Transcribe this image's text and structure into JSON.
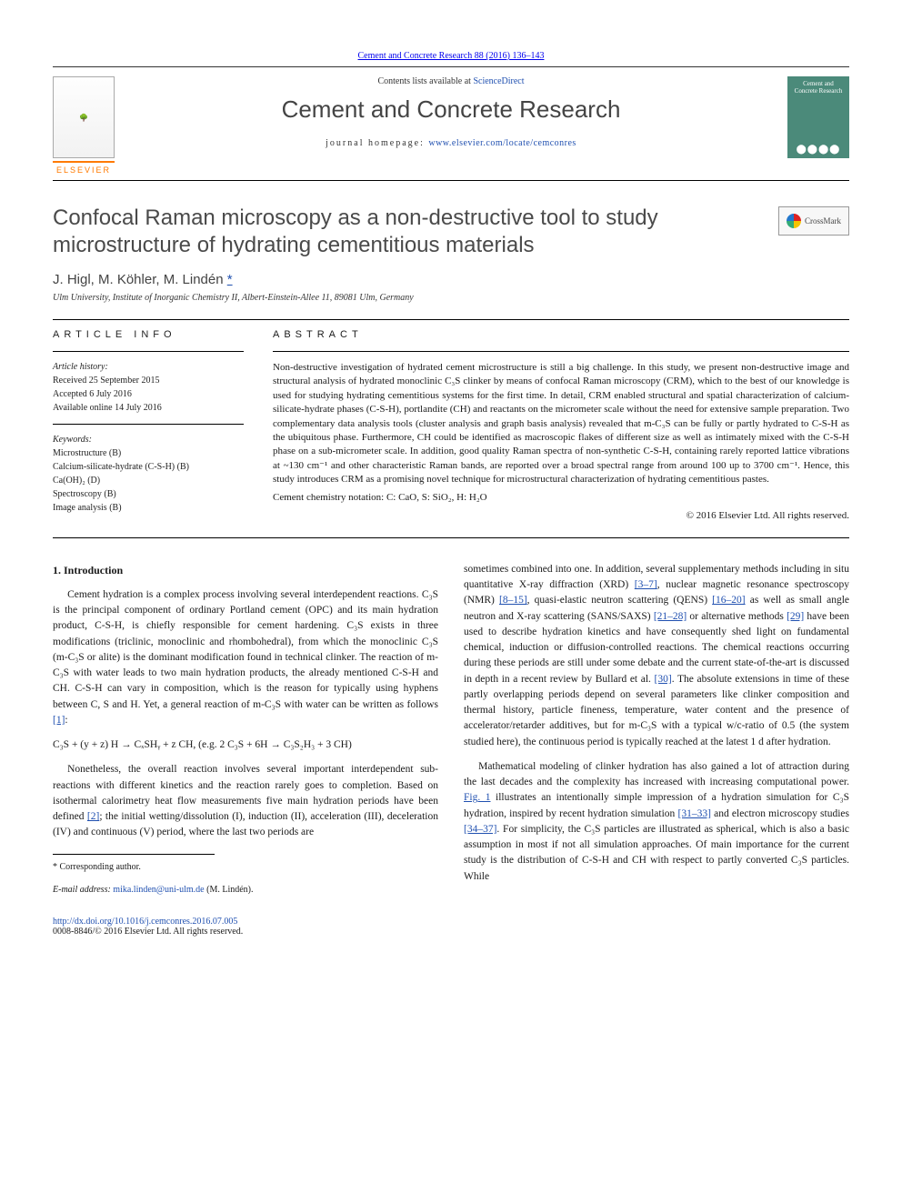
{
  "link_colors": {
    "primary": "#2050b0"
  },
  "journal_ref": "Cement and Concrete Research 88 (2016) 136–143",
  "header": {
    "contents_prefix": "Contents lists available at ",
    "contents_link": "ScienceDirect",
    "journal_name": "Cement and Concrete Research",
    "homepage_prefix": "journal homepage: ",
    "homepage_url": "www.elsevier.com/locate/cemconres",
    "publisher_word": "ELSEVIER",
    "cover_text": "Cement and Concrete Research"
  },
  "crossmark_label": "CrossMark",
  "article": {
    "title": "Confocal Raman microscopy as a non-destructive tool to study microstructure of hydrating cementitious materials",
    "authors": "J. Higl, M. Köhler, M. Lindén ",
    "corr_mark": "*",
    "affiliation": "Ulm University, Institute of Inorganic Chemistry II, Albert-Einstein-Allee 11, 89081 Ulm, Germany"
  },
  "info": {
    "heading": "article info",
    "history_label": "Article history:",
    "received": "Received 25 September 2015",
    "accepted": "Accepted 6 July 2016",
    "online": "Available online 14 July 2016",
    "keywords_label": "Keywords:",
    "keywords": [
      "Microstructure (B)",
      "Calcium-silicate-hydrate (C-S-H) (B)",
      "Ca(OH)₂ (D)",
      "Spectroscopy (B)",
      "Image analysis (B)"
    ]
  },
  "abstract": {
    "heading": "abstract",
    "text": "Non-destructive investigation of hydrated cement microstructure is still a big challenge. In this study, we present non-destructive image and structural analysis of hydrated monoclinic C₃S clinker by means of confocal Raman microscopy (CRM), which to the best of our knowledge is used for studying hydrating cementitious systems for the first time. In detail, CRM enabled structural and spatial characterization of calcium-silicate-hydrate phases (C-S-H), portlandite (CH) and reactants on the micrometer scale without the need for extensive sample preparation. Two complementary data analysis tools (cluster analysis and graph basis analysis) revealed that m-C₃S can be fully or partly hydrated to C-S-H as the ubiquitous phase. Furthermore, CH could be identified as macroscopic flakes of different size as well as intimately mixed with the C-S-H phase on a sub-micrometer scale. In addition, good quality Raman spectra of non-synthetic C-S-H, containing rarely reported lattice vibrations at ~130 cm⁻¹ and other characteristic Raman bands, are reported over a broad spectral range from around 100 up to 3700 cm⁻¹. Hence, this study introduces CRM as a promising novel technique for microstructural characterization of hydrating cementitious pastes.",
    "notation": "Cement chemistry notation: C: CaO, S: SiO₂, H: H₂O",
    "copyright": "© 2016 Elsevier Ltd. All rights reserved."
  },
  "body": {
    "sec1_heading": "1. Introduction",
    "p1": "Cement hydration is a complex process involving several interdependent reactions. C₃S is the principal component of ordinary Portland cement (OPC) and its main hydration product, C-S-H, is chiefly responsible for cement hardening. C₃S exists in three modifications (triclinic, monoclinic and rhombohedral), from which the monoclinic C₃S (m-C₃S or alite) is the dominant modification found in technical clinker. The reaction of m-C₃S with water leads to two main hydration products, the already mentioned C-S-H and CH. C-S-H can vary in composition, which is the reason for typically using hyphens between C, S and H. Yet, a general reaction of m-C₃S with water can be written as follows ",
    "p1_ref": "[1]",
    "eq": "C₃S + (y + z) H → CₓSHᵧ + z CH, (e.g. 2 C₃S + 6H → C₃S₂H₃ + 3 CH)",
    "p2a": "Nonetheless, the overall reaction involves several important interdependent sub-reactions with different kinetics and the reaction rarely goes to completion. Based on isothermal calorimetry heat flow measurements five main hydration periods have been defined ",
    "p2_ref": "[2]",
    "p2b": "; the initial wetting/dissolution (I), induction (II), acceleration (III), deceleration (IV) and continuous (V) period, where the last two periods are",
    "p3a": "sometimes combined into one. In addition, several supplementary methods including in situ quantitative X-ray diffraction (XRD) ",
    "p3_r1": "[3–7]",
    "p3b": ", nuclear magnetic resonance spectroscopy (NMR) ",
    "p3_r2": "[8–15]",
    "p3c": ", quasi-elastic neutron scattering (QENS) ",
    "p3_r3": "[16–20]",
    "p3d": " as well as small angle neutron and X-ray scattering (SANS/SAXS) ",
    "p3_r4": "[21–28]",
    "p3e": " or alternative methods ",
    "p3_r5": "[29]",
    "p3f": " have been used to describe hydration kinetics and have consequently shed light on fundamental chemical, induction or diffusion-controlled reactions. The chemical reactions occurring during these periods are still under some debate and the current state-of-the-art is discussed in depth in a recent review by Bullard et al. ",
    "p3_r6": "[30]",
    "p3g": ". The absolute extensions in time of these partly overlapping periods depend on several parameters like clinker composition and thermal history, particle fineness, temperature, water content and the presence of accelerator/retarder additives, but for m-C₃S with a typical w/c-ratio of 0.5 (the system studied here), the continuous period is typically reached at the latest 1 d after hydration.",
    "p4a": "Mathematical modeling of clinker hydration has also gained a lot of attraction during the last decades and the complexity has increased with increasing computational power. ",
    "p4_fig": "Fig. 1",
    "p4b": " illustrates an intentionally simple impression of a hydration simulation for C₃S hydration, inspired by recent hydration simulation ",
    "p4_r1": "[31–33]",
    "p4c": " and electron microscopy studies ",
    "p4_r2": "[34–37]",
    "p4d": ". For simplicity, the C₃S particles are illustrated as spherical, which is also a basic assumption in most if not all simulation approaches. Of main importance for the current study is the distribution of C-S-H and CH with respect to partly converted C₃S particles. While"
  },
  "footnote": {
    "corr_label": "* Corresponding author.",
    "email_label": "E-mail address: ",
    "email": "mika.linden@uni-ulm.de",
    "email_tail": " (M. Lindén)."
  },
  "footer": {
    "doi": "http://dx.doi.org/10.1016/j.cemconres.2016.07.005",
    "copy": "0008-8846/© 2016 Elsevier Ltd. All rights reserved."
  }
}
